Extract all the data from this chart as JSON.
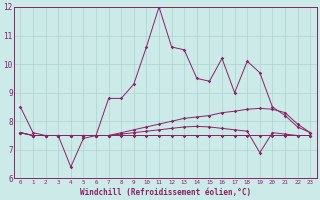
{
  "xlabel": "Windchill (Refroidissement éolien,°C)",
  "background_color": "#cceae8",
  "grid_color": "#aad4d2",
  "line_color": "#882266",
  "xlim": [
    -0.5,
    23.5
  ],
  "ylim": [
    6,
    12
  ],
  "yticks": [
    6,
    7,
    8,
    9,
    10,
    11,
    12
  ],
  "xticks": [
    0,
    1,
    2,
    3,
    4,
    5,
    6,
    7,
    8,
    9,
    10,
    11,
    12,
    13,
    14,
    15,
    16,
    17,
    18,
    19,
    20,
    21,
    22,
    23
  ],
  "series": [
    [
      8.5,
      7.6,
      7.5,
      7.5,
      6.4,
      7.4,
      7.5,
      8.8,
      8.8,
      9.3,
      10.6,
      12.0,
      10.6,
      10.5,
      9.5,
      9.4,
      10.2,
      9.0,
      10.1,
      9.7,
      8.5,
      8.2,
      7.8,
      7.6
    ],
    [
      7.6,
      7.5,
      7.5,
      7.5,
      7.5,
      7.5,
      7.5,
      7.5,
      7.6,
      7.7,
      7.8,
      7.9,
      8.0,
      8.1,
      8.15,
      8.2,
      8.3,
      8.35,
      8.42,
      8.45,
      8.42,
      8.3,
      7.9,
      7.6
    ],
    [
      7.6,
      7.5,
      7.5,
      7.5,
      7.5,
      7.5,
      7.5,
      7.5,
      7.55,
      7.6,
      7.65,
      7.7,
      7.75,
      7.8,
      7.82,
      7.8,
      7.75,
      7.7,
      7.65,
      6.9,
      7.6,
      7.55,
      7.5,
      7.5
    ],
    [
      7.6,
      7.5,
      7.5,
      7.5,
      7.5,
      7.5,
      7.5,
      7.5,
      7.5,
      7.5,
      7.5,
      7.5,
      7.5,
      7.5,
      7.5,
      7.5,
      7.5,
      7.5,
      7.5,
      7.5,
      7.5,
      7.5,
      7.5,
      7.5
    ]
  ]
}
